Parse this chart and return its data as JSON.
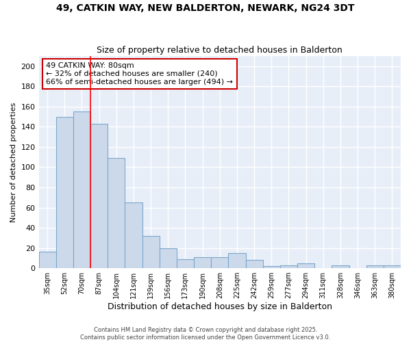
{
  "title": "49, CATKIN WAY, NEW BALDERTON, NEWARK, NG24 3DT",
  "subtitle": "Size of property relative to detached houses in Balderton",
  "xlabel": "Distribution of detached houses by size in Balderton",
  "ylabel": "Number of detached properties",
  "categories": [
    "35sqm",
    "52sqm",
    "70sqm",
    "87sqm",
    "104sqm",
    "121sqm",
    "139sqm",
    "156sqm",
    "173sqm",
    "190sqm",
    "208sqm",
    "225sqm",
    "242sqm",
    "259sqm",
    "277sqm",
    "294sqm",
    "311sqm",
    "328sqm",
    "346sqm",
    "363sqm",
    "380sqm"
  ],
  "values": [
    16,
    150,
    155,
    143,
    109,
    65,
    32,
    20,
    9,
    11,
    11,
    15,
    8,
    2,
    3,
    5,
    0,
    3,
    0,
    3,
    3
  ],
  "bar_color": "#ccd9ea",
  "bar_edge_color": "#7aa6cc",
  "red_line_x": 2.5,
  "annotation_text": "49 CATKIN WAY: 80sqm\n← 32% of detached houses are smaller (240)\n66% of semi-detached houses are larger (494) →",
  "annotation_box_facecolor": "#ffffff",
  "annotation_box_edge": "#cc0000",
  "ylim": [
    0,
    210
  ],
  "yticks": [
    0,
    20,
    40,
    60,
    80,
    100,
    120,
    140,
    160,
    180,
    200
  ],
  "plot_bg_color": "#e8eef8",
  "grid_color": "#ffffff",
  "fig_bg_color": "#ffffff",
  "footer_line1": "Contains HM Land Registry data © Crown copyright and database right 2025.",
  "footer_line2": "Contains public sector information licensed under the Open Government Licence v3.0."
}
